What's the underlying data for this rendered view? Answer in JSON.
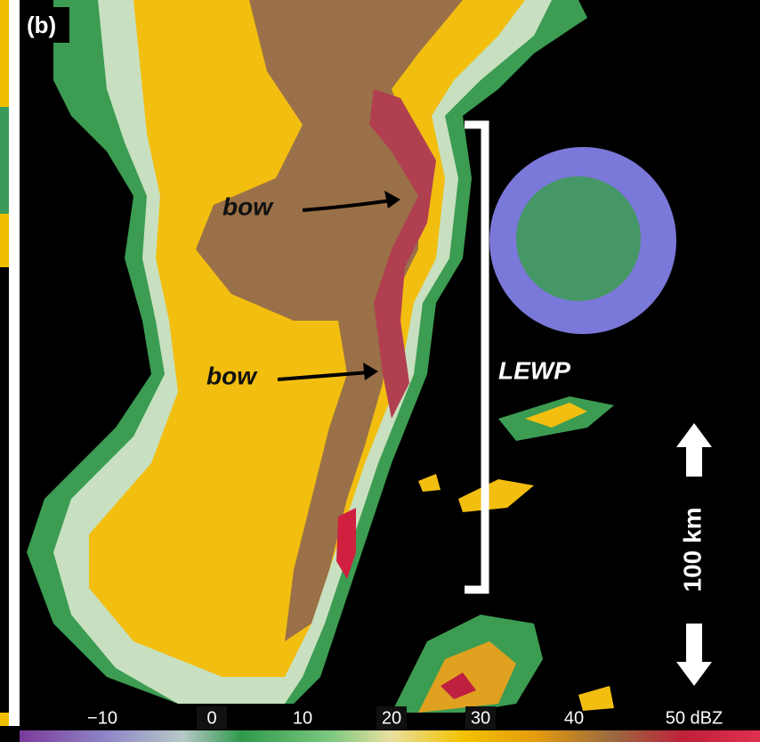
{
  "panel_label": "(b)",
  "annotations": {
    "bow_upper": "bow",
    "bow_lower": "bow",
    "lewp": "LEWP",
    "scale": "100 km"
  },
  "colorbar": {
    "tick_labels": [
      "−10",
      "0",
      "10",
      "20",
      "30",
      "40",
      "50 dBZ"
    ]
  }
}
